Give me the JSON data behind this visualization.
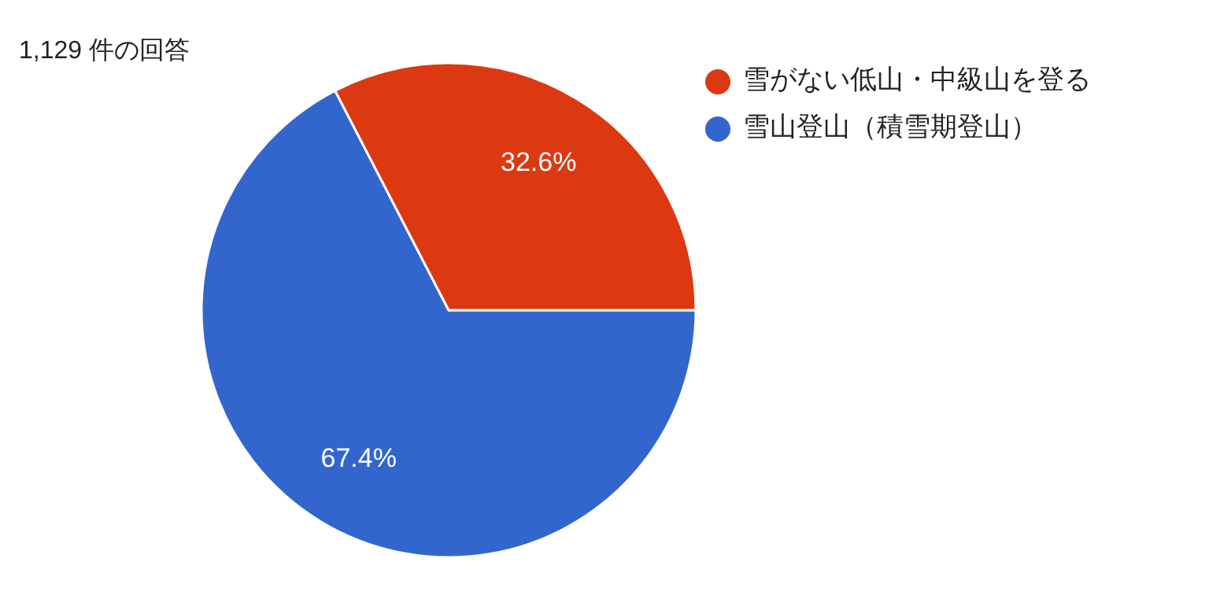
{
  "chart_data": {
    "type": "pie",
    "title": "1,129 件の回答",
    "categories": [
      "雪山登山（積雪期登山）",
      "雪がない低山・中級山を登る"
    ],
    "values": [
      67.4,
      32.6
    ],
    "colors": [
      "#3366cc",
      "#dc3912"
    ],
    "value_labels": [
      "67.4%",
      "32.6%"
    ],
    "legend": "top right"
  }
}
